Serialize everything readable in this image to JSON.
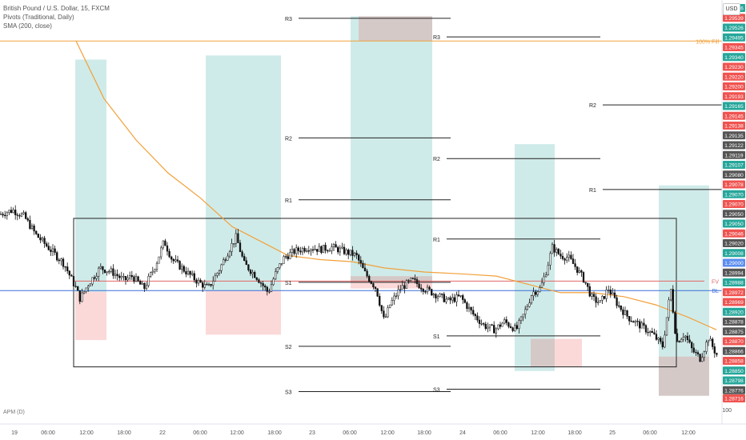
{
  "legend": {
    "symbol": "British Pound / U.S. Dollar, 15, FXCM",
    "pivots": "Pivots (Traditional, Daily)",
    "sma": "SMA (200, close)"
  },
  "currency_label": "USD",
  "apm_label": "APM (D)",
  "scale_100": "100",
  "chart_data": {
    "type": "candlestick",
    "symbol": "GBPUSD",
    "timeframe": "15",
    "ylim": [
      1.2868,
      1.2964
    ],
    "x_ticks": [
      "19",
      "06:00",
      "12:00",
      "18:00",
      "22",
      "06:00",
      "12:00",
      "18:00",
      "23",
      "06:00",
      "12:00",
      "18:00",
      "24",
      "06:00",
      "12:00",
      "18:00",
      "25",
      "06:00",
      "12:00"
    ],
    "price_axis": [
      {
        "value": "1.29616",
        "color": "#26a69a"
      },
      {
        "value": "1.29539",
        "color": "#ef5350"
      },
      {
        "value": "1.29526",
        "color": "#26a69a"
      },
      {
        "value": "1.29495",
        "color": "#26a69a"
      },
      {
        "value": "1.29345",
        "color": "#ef5350"
      },
      {
        "value": "1.29340",
        "color": "#26a69a"
      },
      {
        "value": "1.29230",
        "color": "#ef5350"
      },
      {
        "value": "1.29220",
        "color": "#ef5350"
      },
      {
        "value": "1.29200",
        "color": "#ef5350"
      },
      {
        "value": "1.29193",
        "color": "#ef5350"
      },
      {
        "value": "1.29165",
        "color": "#26a69a"
      },
      {
        "value": "1.29145",
        "color": "#ef5350"
      },
      {
        "value": "1.29138",
        "color": "#ef5350"
      },
      {
        "value": "1.29135",
        "color": "#555555"
      },
      {
        "value": "1.29122",
        "color": "#555555"
      },
      {
        "value": "1.29119",
        "color": "#555555"
      },
      {
        "value": "1.29107",
        "color": "#26a69a"
      },
      {
        "value": "1.29080",
        "color": "#555555"
      },
      {
        "value": "1.29078",
        "color": "#ef5350"
      },
      {
        "value": "1.29070",
        "color": "#26a69a"
      },
      {
        "value": "1.29070",
        "color": "#ef5350"
      },
      {
        "value": "1.29050",
        "color": "#555555"
      },
      {
        "value": "1.29050",
        "color": "#26a69a"
      },
      {
        "value": "1.29046",
        "color": "#ef5350"
      },
      {
        "value": "1.29020",
        "color": "#555555"
      },
      {
        "value": "1.29008",
        "color": "#26a69a"
      },
      {
        "value": "1.29000",
        "color": "#5b8def"
      },
      {
        "value": "1.28994",
        "color": "#555555"
      },
      {
        "value": "1.28988",
        "color": "#26a69a"
      },
      {
        "value": "1.28972",
        "color": "#ef5350"
      },
      {
        "value": "1.28969",
        "color": "#ef5350"
      },
      {
        "value": "1.28920",
        "color": "#26a69a"
      },
      {
        "value": "1.28878",
        "color": "#555555"
      },
      {
        "value": "1.28875",
        "color": "#555555"
      },
      {
        "value": "1.28870",
        "color": "#ef5350"
      },
      {
        "value": "1.28866",
        "color": "#555555"
      },
      {
        "value": "1.28858",
        "color": "#ef5350"
      },
      {
        "value": "1.28850",
        "color": "#26a69a"
      },
      {
        "value": "1.28798",
        "color": "#26a69a"
      },
      {
        "value": "1.28776",
        "color": "#555555"
      },
      {
        "value": "1.28716",
        "color": "#ef5350"
      }
    ],
    "price_curve": [
      [
        0,
        1.2914
      ],
      [
        16,
        1.2915
      ],
      [
        30,
        1.29135
      ],
      [
        45,
        1.2909
      ],
      [
        60,
        1.2906
      ],
      [
        80,
        1.2902
      ],
      [
        95,
        1.2896
      ],
      [
        100,
        1.28935
      ],
      [
        110,
        1.2897
      ],
      [
        125,
        1.2901
      ],
      [
        140,
        1.29
      ],
      [
        155,
        1.2898
      ],
      [
        165,
        1.2899
      ],
      [
        180,
        1.2896
      ],
      [
        195,
        1.2902
      ],
      [
        205,
        1.29075
      ],
      [
        215,
        1.2903
      ],
      [
        230,
        1.29005
      ],
      [
        245,
        1.2898
      ],
      [
        260,
        1.2896
      ],
      [
        275,
        1.2901
      ],
      [
        285,
        1.2905
      ],
      [
        295,
        1.29085
      ],
      [
        305,
        1.2902
      ],
      [
        320,
        1.2899
      ],
      [
        335,
        1.2895
      ],
      [
        345,
        1.29
      ],
      [
        355,
        1.29035
      ],
      [
        368,
        1.2905
      ],
      [
        385,
        1.2906
      ],
      [
        400,
        1.29055
      ],
      [
        415,
        1.2906
      ],
      [
        430,
        1.2905
      ],
      [
        445,
        1.2904
      ],
      [
        455,
        1.29
      ],
      [
        470,
        1.2896
      ],
      [
        480,
        1.2888
      ],
      [
        487,
        1.2892
      ],
      [
        500,
        1.2896
      ],
      [
        515,
        1.2898
      ],
      [
        530,
        1.2896
      ],
      [
        545,
        1.28945
      ],
      [
        560,
        1.2893
      ],
      [
        575,
        1.2894
      ],
      [
        590,
        1.289
      ],
      [
        605,
        1.2887
      ],
      [
        618,
        1.2886
      ],
      [
        630,
        1.2888
      ],
      [
        645,
        1.2886
      ],
      [
        655,
        1.289
      ],
      [
        665,
        1.2895
      ],
      [
        675,
        1.2896
      ],
      [
        682,
        1.29
      ],
      [
        690,
        1.2906
      ],
      [
        700,
        1.2904
      ],
      [
        710,
        1.29035
      ],
      [
        720,
        1.2901
      ],
      [
        730,
        1.2898
      ],
      [
        740,
        1.28935
      ],
      [
        750,
        1.28925
      ],
      [
        760,
        1.2896
      ],
      [
        772,
        1.2892
      ],
      [
        785,
        1.2889
      ],
      [
        800,
        1.2887
      ],
      [
        815,
        1.2885
      ],
      [
        828,
        1.2882
      ],
      [
        838,
        1.2896
      ],
      [
        845,
        1.2883
      ],
      [
        855,
        1.2885
      ],
      [
        865,
        1.2881
      ],
      [
        875,
        1.2879
      ],
      [
        885,
        1.2884
      ],
      [
        895,
        1.288
      ]
    ],
    "sma200": [
      [
        95,
        1.2956
      ],
      [
        130,
        1.2942
      ],
      [
        170,
        1.2932
      ],
      [
        210,
        1.2924
      ],
      [
        250,
        1.2918
      ],
      [
        290,
        1.2911
      ],
      [
        330,
        1.2907
      ],
      [
        360,
        1.2904
      ],
      [
        400,
        1.2903
      ],
      [
        440,
        1.29025
      ],
      [
        480,
        1.2901
      ],
      [
        530,
        1.29
      ],
      [
        580,
        1.28995
      ],
      [
        620,
        1.2899
      ],
      [
        660,
        1.2897
      ],
      [
        700,
        1.2895
      ],
      [
        740,
        1.2895
      ],
      [
        780,
        1.2894
      ],
      [
        820,
        1.2892
      ],
      [
        860,
        1.2889
      ],
      [
        895,
        1.2886
      ]
    ],
    "pivot_sets": [
      {
        "levels": [
          {
            "label": "R3",
            "price": 1.29615
          },
          {
            "label": "R2",
            "price": 1.29325
          },
          {
            "label": "R1",
            "price": 1.29175
          },
          {
            "label": "S1",
            "price": 1.28975
          },
          {
            "label": "S2",
            "price": 1.2882
          },
          {
            "label": "S3",
            "price": 1.2871
          }
        ]
      },
      {
        "levels": [
          {
            "label": "R3",
            "price": 1.2957
          },
          {
            "label": "R2",
            "price": 1.29275
          },
          {
            "label": "R1",
            "price": 1.2908
          },
          {
            "label": "S1",
            "price": 1.28845
          },
          {
            "label": "S3",
            "price": 1.28716
          }
        ]
      },
      {
        "levels": [
          {
            "label": "R2",
            "price": 1.29405
          },
          {
            "label": "R1",
            "price": 1.292
          }
        ]
      }
    ],
    "horizontal_lines": [
      {
        "label": "100% Fill",
        "price": 1.2956,
        "color": "#f2a03a"
      },
      {
        "label": "BL",
        "price": 1.28955,
        "color": "#3a6fd8"
      },
      {
        "label": "FV",
        "price": 1.28978,
        "color": "#e06666"
      }
    ],
    "zones": [
      {
        "kind": "long",
        "top": 1.29515,
        "bottom": 1.28952
      },
      {
        "kind": "short",
        "top": 1.28952,
        "bottom": 1.28835
      },
      {
        "kind": "long",
        "top": 1.29525,
        "bottom": 1.28955
      },
      {
        "kind": "short",
        "top": 1.28955,
        "bottom": 1.28848
      },
      {
        "kind": "long",
        "top": 1.2962,
        "bottom": 1.28975
      },
      {
        "kind": "short",
        "top": 1.2962,
        "bottom": 1.2956
      },
      {
        "kind": "short",
        "top": 1.2899,
        "bottom": 1.2896
      },
      {
        "kind": "long",
        "top": 1.2931,
        "bottom": 1.2876
      },
      {
        "kind": "short",
        "top": 1.28838,
        "bottom": 1.2877
      },
      {
        "kind": "long",
        "top": 1.2921,
        "bottom": 1.287
      },
      {
        "kind": "short",
        "top": 1.28795,
        "bottom": 1.287
      }
    ],
    "range_box": {
      "top": 1.2913,
      "bottom": 1.2877
    }
  }
}
